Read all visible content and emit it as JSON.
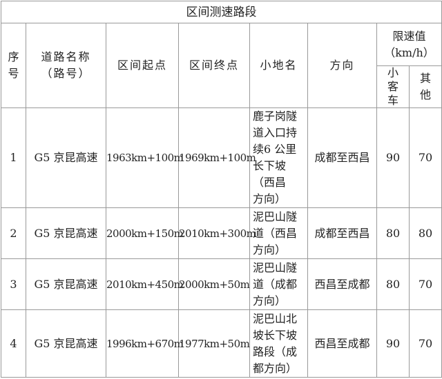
{
  "title": "区间测速路段",
  "headers": {
    "index": "序\n号",
    "road": "道路名称\n（路号）",
    "start": "区间起点",
    "end": "区间终点",
    "place": "小地名",
    "direction": "方向",
    "limit": "限速值\n（km/h）",
    "car": "小\n客\n车",
    "other": "其\n他"
  },
  "rows": [
    {
      "index": "1",
      "road": "G5 京昆高速",
      "start": "1963km+100m",
      "end": "1969km+100m",
      "place": "鹿子岗隧\n道入口持\n续6 公里\n长下坡\n（西昌\n方向）",
      "direction": "成都至西昌",
      "car": "90",
      "other": "70"
    },
    {
      "index": "2",
      "road": "G5 京昆高速",
      "start": "2000km+150m",
      "end": "2010km+300m",
      "place": "泥巴山隧\n道（西昌\n方向）",
      "direction": "成都至西昌",
      "car": "80",
      "other": "80"
    },
    {
      "index": "3",
      "road": "G5 京昆高速",
      "start": "2010km+450m",
      "end": "2000km+50m",
      "place": "泥巴山隧\n道（成都\n方向）",
      "direction": "西昌至成都",
      "car": "80",
      "other": "70"
    },
    {
      "index": "4",
      "road": "G5 京昆高速",
      "start": "1996km+670m",
      "end": "1977km+50m",
      "place": "泥巴山北\n坡长下坡\n路段（成\n都方向）",
      "direction": "西昌至成都",
      "car": "90",
      "other": "70"
    }
  ]
}
